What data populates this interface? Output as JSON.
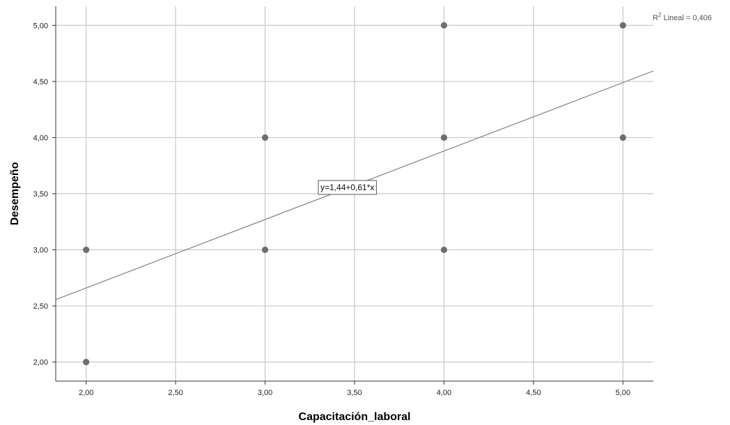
{
  "chart_data": {
    "type": "scatter",
    "xlabel": "Capacitación_laboral",
    "ylabel": "Desempeño",
    "xlim": [
      1.83,
      5.17
    ],
    "ylim": [
      1.83,
      5.17
    ],
    "x_ticks": [
      "2,00",
      "2,50",
      "3,00",
      "3,50",
      "4,00",
      "4,50",
      "5,00"
    ],
    "y_ticks": [
      "2,00",
      "2,50",
      "3,00",
      "3,50",
      "4,00",
      "4,50",
      "5,00"
    ],
    "grid": true,
    "points": [
      {
        "x": 2,
        "y": 2
      },
      {
        "x": 2,
        "y": 3
      },
      {
        "x": 3,
        "y": 3
      },
      {
        "x": 3,
        "y": 4
      },
      {
        "x": 4,
        "y": 3
      },
      {
        "x": 4,
        "y": 4
      },
      {
        "x": 4,
        "y": 5
      },
      {
        "x": 5,
        "y": 4
      },
      {
        "x": 5,
        "y": 5
      }
    ],
    "fit_line": {
      "intercept": 1.44,
      "slope": 0.61,
      "equation_label": "y=1,44+0,61*x"
    },
    "r2_label_prefix": "R",
    "r2_label_sup": "2",
    "r2_label_suffix": " Lineal = 0,406",
    "colors": {
      "point": "#6e6e6e",
      "line": "#8a8a8a",
      "grid": "#c8c8c8",
      "axis": "#333333"
    }
  }
}
